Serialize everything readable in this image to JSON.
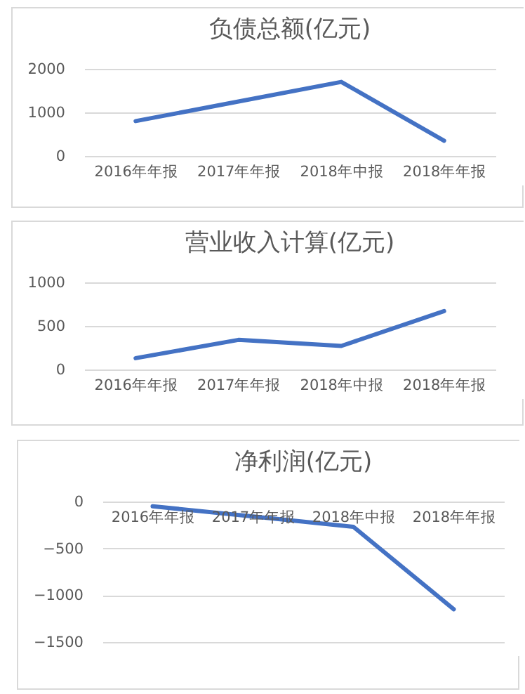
{
  "chart_data": [
    {
      "type": "line",
      "title": "负债总额(亿元)",
      "categories": [
        "2016年年报",
        "2017年年报",
        "2018年中报",
        "2018年年报"
      ],
      "values": [
        800,
        1250,
        1700,
        350
      ],
      "color": "#4472c4",
      "ylim": [
        0,
        2000
      ],
      "yticks": [
        0,
        1000,
        2000
      ],
      "grid": "y"
    },
    {
      "type": "line",
      "title": "营业收入计算(亿元)",
      "categories": [
        "2016年年报",
        "2017年年报",
        "2018年中报",
        "2018年年报"
      ],
      "values": [
        130,
        340,
        270,
        670
      ],
      "color": "#4472c4",
      "ylim": [
        0,
        1000
      ],
      "yticks": [
        0,
        500,
        1000
      ],
      "grid": "y"
    },
    {
      "type": "line",
      "title": "净利润(亿元)",
      "categories": [
        "2016年年报",
        "2017年年报",
        "2018年中报",
        "2018年年报"
      ],
      "values": [
        -50,
        -160,
        -270,
        -1150
      ],
      "color": "#4472c4",
      "ylim": [
        -1500,
        0
      ],
      "yticks": [
        -1500,
        -1000,
        -500,
        0
      ],
      "grid": "y"
    }
  ]
}
